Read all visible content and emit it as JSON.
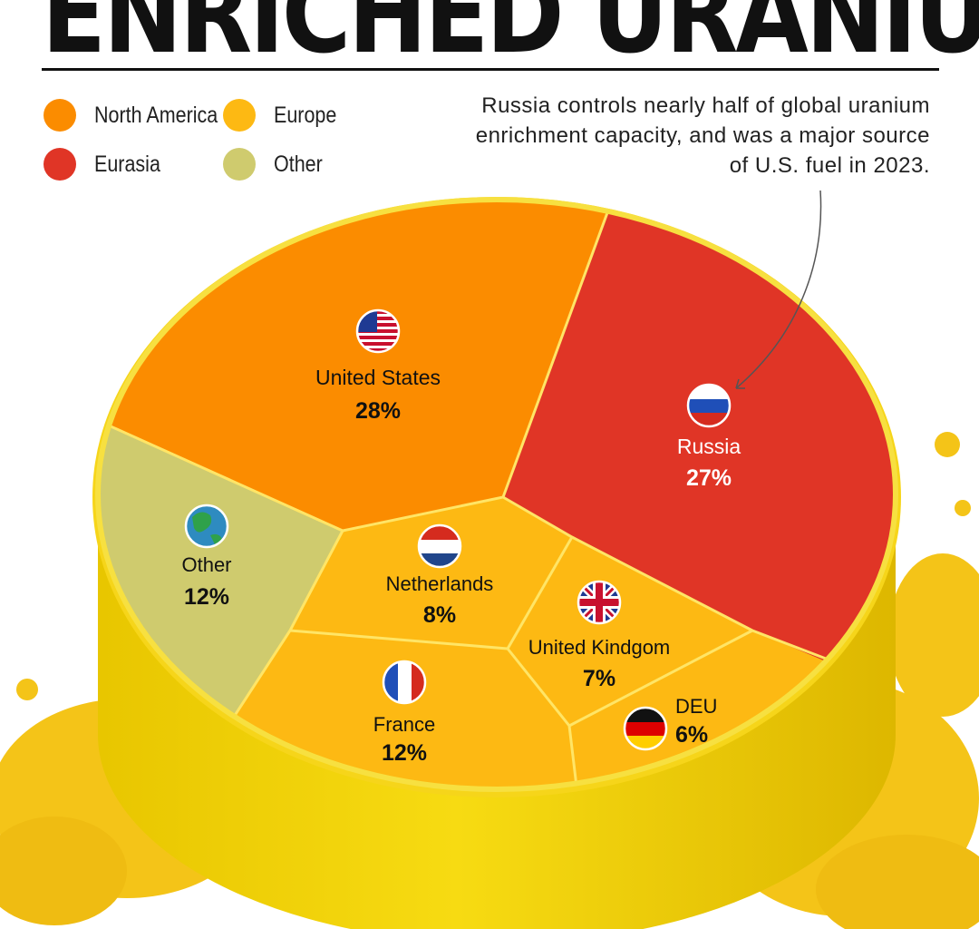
{
  "title": "ENRICHED URANIUM",
  "annotation": "Russia controls nearly half of global uranium enrichment capacity, and was a major source of U.S. fuel in 2023.",
  "legend": [
    {
      "label": "North America",
      "color": "#FB8C00"
    },
    {
      "label": "Europe",
      "color": "#FDB913"
    },
    {
      "label": "Eurasia",
      "color": "#E03526"
    },
    {
      "label": "Other",
      "color": "#CFCB6E"
    }
  ],
  "chart_data": {
    "type": "pie",
    "title": "",
    "series": [
      {
        "label": "United States",
        "value": 28,
        "display": "28%",
        "region": "North America",
        "icon": "us-flag-icon"
      },
      {
        "label": "Russia",
        "value": 27,
        "display": "27%",
        "region": "Eurasia",
        "icon": "russia-flag-icon"
      },
      {
        "label": "Netherlands",
        "value": 8,
        "display": "8%",
        "region": "Europe",
        "icon": "netherlands-flag-icon"
      },
      {
        "label": "United Kindgom",
        "value": 7,
        "display": "7%",
        "region": "Europe",
        "icon": "uk-flag-icon"
      },
      {
        "label": "DEU",
        "value": 6,
        "display": "6%",
        "region": "Europe",
        "icon": "germany-flag-icon"
      },
      {
        "label": "France",
        "value": 12,
        "display": "12%",
        "region": "Europe",
        "icon": "france-flag-icon"
      },
      {
        "label": "Other",
        "value": 12,
        "display": "12%",
        "region": "Other",
        "icon": "globe-icon"
      }
    ]
  }
}
